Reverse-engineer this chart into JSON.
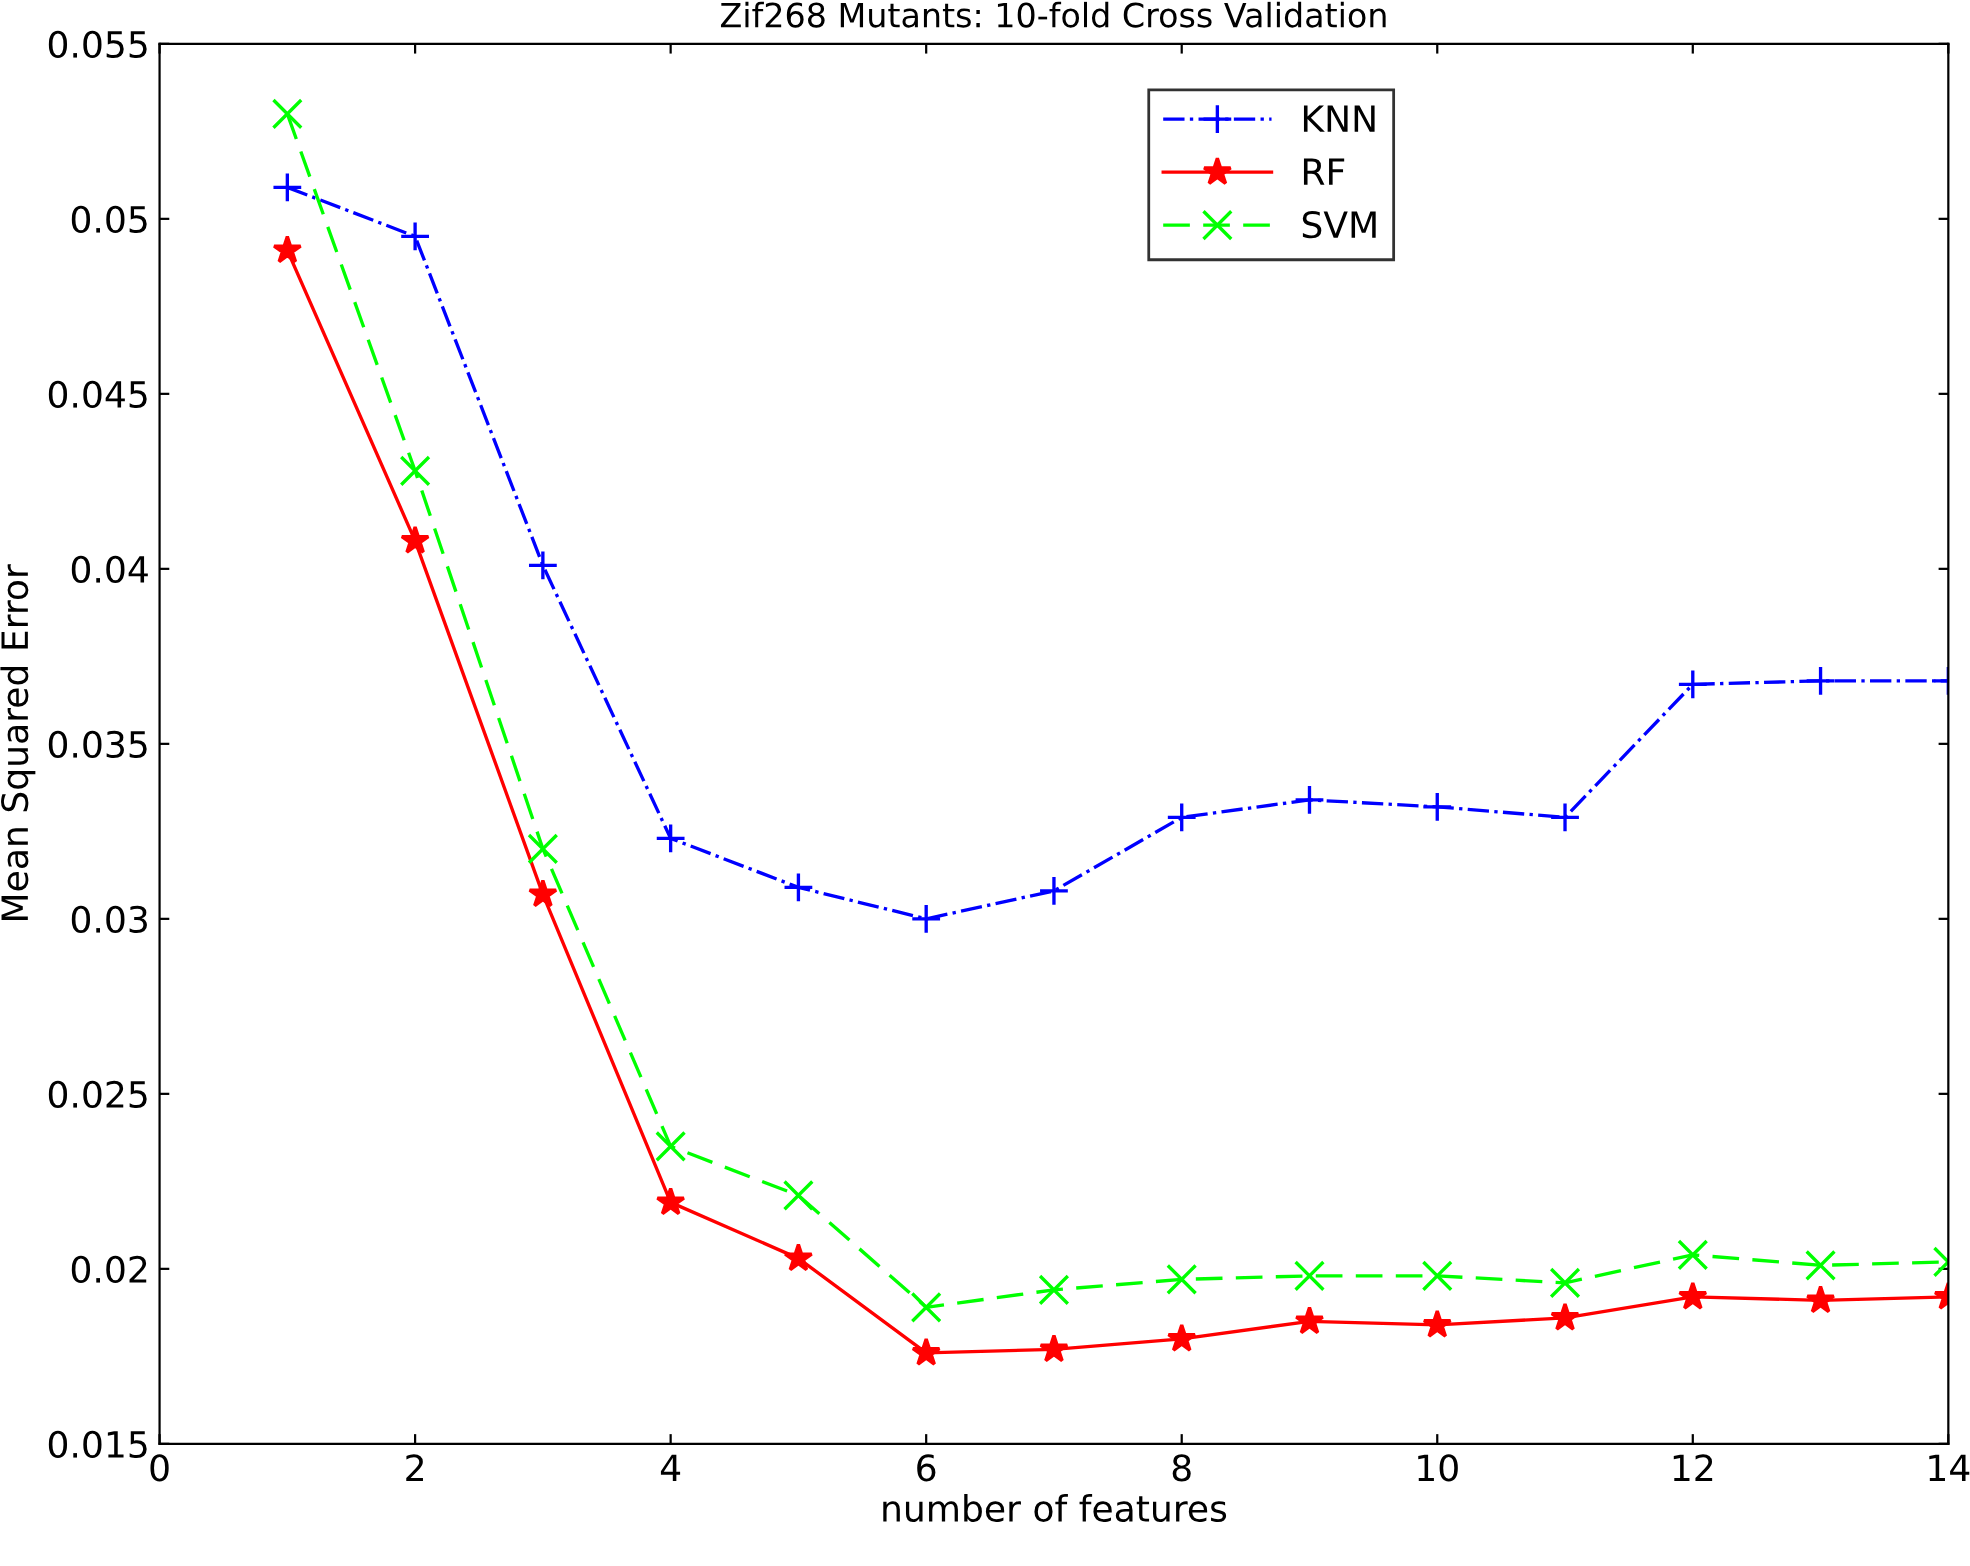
{
  "chart_data": {
    "type": "line",
    "title": "Zif268 Mutants: 10-fold Cross Validation",
    "xlabel": "number of features",
    "ylabel": "Mean Squared Error",
    "x": [
      1,
      2,
      3,
      4,
      5,
      6,
      7,
      8,
      9,
      10,
      11,
      12,
      13,
      14
    ],
    "series": [
      {
        "name": "KNN",
        "color": "#0000ff",
        "marker": "plus",
        "line_style": "dashdot",
        "values": [
          0.0509,
          0.0495,
          0.0401,
          0.0323,
          0.0309,
          0.03,
          0.0308,
          0.0329,
          0.0334,
          0.0332,
          0.0329,
          0.0367,
          0.0368,
          0.0368
        ]
      },
      {
        "name": "RF",
        "color": "#ff0000",
        "marker": "star",
        "line_style": "solid",
        "values": [
          0.0491,
          0.0408,
          0.0307,
          0.0219,
          0.0203,
          0.0176,
          0.0177,
          0.018,
          0.0185,
          0.0184,
          0.0186,
          0.0192,
          0.0191,
          0.0192
        ]
      },
      {
        "name": "SVM",
        "color": "#00ff00",
        "marker": "cross",
        "line_style": "dashed",
        "values": [
          0.053,
          0.0428,
          0.032,
          0.0235,
          0.0221,
          0.0189,
          0.0194,
          0.0197,
          0.0198,
          0.0198,
          0.0196,
          0.0204,
          0.0201,
          0.0202
        ]
      }
    ],
    "xlim": [
      0,
      14
    ],
    "xticks": [
      0,
      2,
      4,
      6,
      8,
      10,
      12,
      14
    ],
    "ylim": [
      0.015,
      0.055
    ],
    "yticks": [
      0.015,
      0.02,
      0.025,
      0.03,
      0.035,
      0.04,
      0.045,
      0.05,
      0.055
    ],
    "grid": false,
    "legend": "top right"
  }
}
